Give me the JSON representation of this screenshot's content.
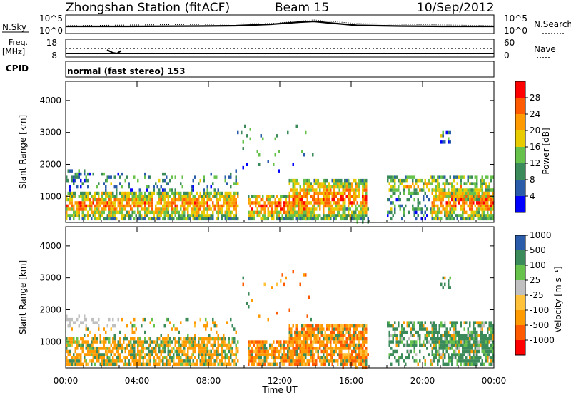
{
  "header": {
    "station": "Zhongshan Station (fitACF)",
    "beam": "Beam 15",
    "date": "10/Sep/2012"
  },
  "strip_panels": {
    "nsky_label": "N.Sky",
    "nsky_ticks": [
      "10^5",
      "10^0"
    ],
    "nsearch_label": "N.Search",
    "nsearch_ticks": [
      "10^5",
      "10^0"
    ],
    "freq_label": "Freq.",
    "freq_unit": "[MHz]",
    "freq_ticks": [
      "18",
      "8"
    ],
    "nave_label": "Nave",
    "nave_ticks": [
      "60",
      "0"
    ],
    "cpid_label": "CPID",
    "cpid_value": "normal (fast stereo) 153"
  },
  "colors": {
    "power_scale": [
      "#0000ff",
      "#2a5caa",
      "#3a8a5a",
      "#66c24a",
      "#e8cc00",
      "#ff9a00",
      "#ff5a00",
      "#ff0000"
    ],
    "velocity_scale": [
      "#ff0000",
      "#ff5a00",
      "#ff9a00",
      "#ffc23a",
      "#c0c0c0",
      "#66c24a",
      "#3a8a5a",
      "#2a5caa"
    ]
  },
  "chart_data": [
    {
      "type": "heatmap",
      "name": "power",
      "ylabel": "Slant Range [km]",
      "yticks": [
        1000,
        2000,
        3000,
        4000
      ],
      "ylim": [
        180,
        4600
      ],
      "xlim": [
        0,
        24
      ],
      "colorbar_label": "Power [dB]",
      "colorbar_ticks": [
        "4",
        "8",
        "12",
        "16",
        "20",
        "24",
        "28"
      ],
      "colorbar_range": [
        0,
        30
      ]
    },
    {
      "type": "heatmap",
      "name": "velocity",
      "ylabel": "Slant Range [km]",
      "yticks": [
        1000,
        2000,
        3000,
        4000
      ],
      "ylim": [
        180,
        4600
      ],
      "xlim": [
        0,
        24
      ],
      "colorbar_label": "Velocity [m s⁻¹]",
      "colorbar_ticks": [
        "-1000",
        "-500",
        "-100",
        "-25",
        "25",
        "100",
        "500",
        "1000"
      ],
      "xlabel": "Time UT",
      "xticks": [
        "00:00",
        "04:00",
        "08:00",
        "12:00",
        "16:00",
        "20:00",
        "00:00"
      ]
    }
  ]
}
